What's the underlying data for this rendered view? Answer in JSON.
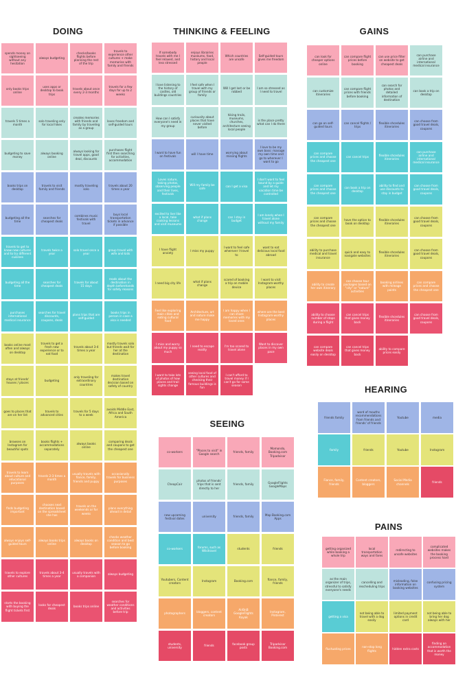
{
  "palette": {
    "pink": "#f9a8b8",
    "teal": "#bde3dd",
    "lav": "#b8c7ea",
    "blue": "#9fb5e6",
    "cyan": "#59ccd4",
    "lime": "#e4e47a",
    "orange": "#f6a86a",
    "red": "#ea5371",
    "crimson": "#e54a66",
    "empty": "#ffffff"
  },
  "sections": [
    {
      "id": "doing",
      "title": "DOING",
      "notes": [
        [
          "spends money on sightseeing without any hesitation",
          "pink"
        ],
        [
          "always budgeting",
          "pink"
        ],
        [
          "checks/books flights before planning the rest of the trip",
          "pink"
        ],
        [
          "travels to experience other cultures + make memories with family and friends",
          "pink"
        ],
        [
          "only books trips online",
          "pink"
        ],
        [
          "uses apps or desktop to book trips",
          "pink"
        ],
        [
          "travels about once every 2-3 months",
          "pink"
        ],
        [
          "travels for a few days for up to 2 weeks",
          "pink"
        ],
        [
          "travels 5 times a month",
          "teal"
        ],
        [
          "solo traveling only for local hikes",
          "teal"
        ],
        [
          "creates memories with friends and family by traveling as a group",
          "teal"
        ],
        [
          "loves freedom and self-guided tours",
          "teal"
        ],
        [
          "budgeting to save money",
          "teal"
        ],
        [
          "always booking online",
          "teal"
        ],
        [
          "always looking for travel apps, good deal, discounts",
          "teal"
        ],
        [
          "purchases flight first then searching for activities, accommodation",
          "teal"
        ],
        [
          "books trips on desktop",
          "blue"
        ],
        [
          "travels to visit family and friends",
          "blue"
        ],
        [
          "mostly traveling solo",
          "blue"
        ],
        [
          "travels about 20 times a year",
          "blue"
        ],
        [
          "budgeting all the time",
          "blue"
        ],
        [
          "searches for cheapest deals",
          "blue"
        ],
        [
          "combines music festivals with travel",
          "blue"
        ],
        [
          "buys local transportation tickets in advance if possible",
          "blue"
        ],
        [
          "travels to get to know new cultures and to try different cuisines",
          "cyan"
        ],
        [
          "travels twice a year",
          "cyan"
        ],
        [
          "solo travel once a year",
          "cyan"
        ],
        [
          "group travel with wife and kids",
          "cyan"
        ],
        [
          "budgeting all the time",
          "cyan"
        ],
        [
          "searches for cheapest deals",
          "cyan"
        ],
        [
          "travels for about 15 days",
          "cyan"
        ],
        [
          "reads about the destination in depth beforehands for safety reasons",
          "cyan"
        ],
        [
          "purchases international medical insurance",
          "cyan"
        ],
        [
          "searches for travel discounts, coupons, deals",
          "cyan"
        ],
        [
          "plans trips that are self-guided",
          "cyan"
        ],
        [
          "books trips in person in case a visa is needed",
          "cyan"
        ],
        [
          "books online most often and always on desktop",
          "lime"
        ],
        [
          "travels to get a fresh new experience or to eat food",
          "lime"
        ],
        [
          "travels about 3-4 times a year",
          "lime"
        ],
        [
          "mostly travels solo but friends wait for her at the destination",
          "lime"
        ],
        [
          "stays at friends' houses / places",
          "lime"
        ],
        [
          "budgeting",
          "lime"
        ],
        [
          "only traveling for extraordinary countries",
          "lime"
        ],
        [
          "makes travel destination decision based on safety of country",
          "lime"
        ],
        [
          "goes to places that are on her list",
          "lime"
        ],
        [
          "travels to advanced cities",
          "lime"
        ],
        [
          "travels for 5 days to a week",
          "lime"
        ],
        [
          "avoids Middle East, Africa and South America",
          "lime"
        ],
        [
          "browses on Instagram for beautiful spots",
          "lime"
        ],
        [
          "books flights + accommodations separately",
          "lime"
        ],
        [
          "always books online",
          "lime"
        ],
        [
          "comparing deals and coupons to get the cheapest one",
          "lime"
        ],
        [
          "travels to learn about culture and educational purposes",
          "orange"
        ],
        [
          "travels 2-3 times a month",
          "orange"
        ],
        [
          "usually travels with fiance, family, friends and puppy",
          "orange"
        ],
        [
          "occasionally travels for business purposes",
          "orange"
        ],
        [
          "finds budgeting important",
          "orange"
        ],
        [
          "chooses next destination based on the spreadsheet she has",
          "orange"
        ],
        [
          "travels on the weekends or for weeks",
          "orange"
        ],
        [
          "plans everything ahead in detail",
          "orange"
        ],
        [
          "always enjoys self-guided tours",
          "orange"
        ],
        [
          "always books trips online",
          "orange"
        ],
        [
          "always books on desktop",
          "orange"
        ],
        [
          "checks weather condition and best season to go before booking",
          "orange"
        ],
        [
          "travels to explore other cultures",
          "red"
        ],
        [
          "travels about 3-4 times a year",
          "red"
        ],
        [
          "usually travels with a companion",
          "red"
        ],
        [
          "always budgeting",
          "red"
        ],
        [
          "starts the booking with buying the flight tickets first",
          "red"
        ],
        [
          "looks for cheapest deals",
          "red"
        ],
        [
          "books trips online",
          "red"
        ],
        [
          "searches for weather conditions and activities before trip",
          "red"
        ]
      ]
    },
    {
      "id": "thinking",
      "title": "THINKING & FEELING",
      "notes": [
        [
          "If somebody travels with me I feel relaxed, and less stressed",
          "pink"
        ],
        [
          "enjoys librairies museums, food, history and local people",
          "pink"
        ],
        [
          "Which countries are unsafe",
          "pink"
        ],
        [
          "Self-guided tours gives me freedom",
          "pink"
        ],
        [
          "I love listening to the history of castles, old buildings countries",
          "teal"
        ],
        [
          "I feel safe when I travel with my group of friends or family",
          "teal"
        ],
        [
          "Will I get lost or be robbed",
          "teal"
        ],
        [
          "I am so stressed as I need to travel",
          "teal"
        ],
        [
          "How can I satisfy everyone's need in my group",
          "teal"
        ],
        [
          "curiousity about places that have never visited before",
          "teal"
        ],
        [
          "hiking trails, museums, churches, architecture seeing local people",
          "teal"
        ],
        [
          "is the place pretty what can I do there",
          "teal"
        ],
        [
          "I want to have fun on festivals",
          "blue"
        ],
        [
          "will I have time",
          "blue"
        ],
        [
          "worrying about missing flights",
          "blue"
        ],
        [
          "I love to be my own boss: manage my own time and go to wherever I want to go",
          "blue"
        ],
        [
          "Loves nature, taking photos, observing people and their lives, festivals",
          "cyan"
        ],
        [
          "Will my family be safe",
          "cyan"
        ],
        [
          "can I get a visa",
          "cyan"
        ],
        [
          "I don't want to feel bound by a guide and let my vacation time be controlled",
          "cyan"
        ],
        [
          "excited to live like a local, take cooking lessons and visit museums",
          "cyan"
        ],
        [
          "what if plans change",
          "cyan"
        ],
        [
          "can I stay in budget",
          "cyan"
        ],
        [
          "I am lonely when I travel alone without my family",
          "cyan"
        ],
        [
          "I have flight anxiety",
          "lime"
        ],
        [
          "I miss my puppy",
          "lime"
        ],
        [
          "I want to feel safe wherever I travel to",
          "lime"
        ],
        [
          "want to eat delicious local food abroad",
          "lime"
        ],
        [
          "I need big city life",
          "lime"
        ],
        [
          "what if plans change",
          "lime"
        ],
        [
          "scared of booking a trip on mobile device",
          "lime"
        ],
        [
          "I want to visit Instagram-worthy places",
          "lime"
        ],
        [
          "Feel like exploring main cities and eating cultural food",
          "orange"
        ],
        [
          "Architecture, art and nature make me happy",
          "orange"
        ],
        [
          "I am happy when I can share memories with my loved ones",
          "orange"
        ],
        [
          "where are the best Instagram-worthy places",
          "orange"
        ],
        [
          "I miss and worry about my puppy so much",
          "red"
        ],
        [
          "I need to escape reality",
          "red"
        ],
        [
          "I'm too scared to travel alone",
          "red"
        ],
        [
          "Want to discover places in my own pace",
          "red"
        ],
        [
          "I want to take lots of photos of how places and trail sights change",
          "crimson"
        ],
        [
          "seeing local food of other cultures and checking their famous buildings is fun",
          "crimson"
        ],
        [
          "I can't afford to travel money if I can't go for some season",
          "crimson"
        ],
        [
          "",
          "empty"
        ]
      ]
    },
    {
      "id": "gains",
      "title": "GAINS",
      "notes": [
        [
          "can look for cheaper options online",
          "pink"
        ],
        [
          "can compare flight prices before booking",
          "pink"
        ],
        [
          "can use price filter on website to get cheapest deals",
          "pink"
        ],
        [
          "can purchase airline and international medical insurance",
          "teal"
        ],
        [
          "can customize itineraries",
          "teal"
        ],
        [
          "can compare flight prices with friends before booking",
          "teal"
        ],
        [
          "can search for photos and detailed information of destination",
          "teal"
        ],
        [
          "can book a trip on desktop",
          "teal"
        ],
        [
          "can go on self-guided tours",
          "blue"
        ],
        [
          "can cancel flights / trips",
          "blue"
        ],
        [
          "flexible shcedules itineraries",
          "blue"
        ],
        [
          "can choose from good travel deals, coupons",
          "blue"
        ],
        [
          "can compare prices and choose the cheapest one",
          "cyan"
        ],
        [
          "can cancel trips",
          "cyan"
        ],
        [
          "flexible shcedules itineraries",
          "cyan"
        ],
        [
          "can purchase airline and international medical insurance",
          "cyan"
        ],
        [
          "can compare prices and choose the cheapest one",
          "cyan"
        ],
        [
          "can book a trip on desktop",
          "cyan"
        ],
        [
          "ability to find and use discounts to stay in budget",
          "cyan"
        ],
        [
          "can choose from good travel deals, coupons",
          "cyan"
        ],
        [
          "can compare prices and choose the cheapest one",
          "lime"
        ],
        [
          "have the option to book on desktop",
          "lime"
        ],
        [
          "flexible shcedules itineraries",
          "lime"
        ],
        [
          "can choose from good travel deals, coupons",
          "lime"
        ],
        [
          "ability to purchase medical and travel insurance",
          "lime"
        ],
        [
          "quick and easy to navigate websites",
          "lime"
        ],
        [
          "flexible shcedules itineraries",
          "lime"
        ],
        [
          "can choose from good travel deals, coupons",
          "lime"
        ],
        [
          "ability to create her own itinerary",
          "orange"
        ],
        [
          "can choose tour packages based on \"city\" or \"nature\" activities",
          "orange"
        ],
        [
          "booking airlines with mileage points",
          "orange"
        ],
        [
          "can compare prices and choose the cheapest one",
          "orange"
        ],
        [
          "ability to choose number of stops during a flight",
          "red"
        ],
        [
          "can cancel trips that gives money back",
          "red"
        ],
        [
          "flexible shcedules itineraries",
          "red"
        ],
        [
          "can choose from good travel deals, coupons",
          "red"
        ],
        [
          "can compare website deals easily on desktop",
          "crimson"
        ],
        [
          "can cancel trips that gives money back",
          "crimson"
        ],
        [
          "ability to compare prices easily",
          "crimson"
        ],
        [
          "",
          "empty"
        ]
      ]
    },
    {
      "id": "seeing",
      "title": "SEEING",
      "notes": [
        [
          "co-workers",
          "pink"
        ],
        [
          "\"Places to visit\" in Google search",
          "pink"
        ],
        [
          "friends, family",
          "pink"
        ],
        [
          "Momondo, Booking.com Tripadvisor",
          "pink"
        ],
        [
          "CheapCair",
          "teal"
        ],
        [
          "photos of friends' trips that is sent directly to her",
          "teal"
        ],
        [
          "friends, family",
          "teal"
        ],
        [
          "GoogleFlights GoogleMaps",
          "teal"
        ],
        [
          "new upcoming festival dates",
          "blue"
        ],
        [
          "university",
          "blue"
        ],
        [
          "friends, family",
          "blue"
        ],
        [
          "Map Booking.com Apps",
          "blue"
        ],
        [
          "co-workers",
          "cyan"
        ],
        [
          "forums, such as Wikitravel",
          "cyan"
        ],
        [
          "students",
          "lime"
        ],
        [
          "friends",
          "lime"
        ],
        [
          "Youtubers, Content creators",
          "lime"
        ],
        [
          "Instagram",
          "lime"
        ],
        [
          "Booking.com",
          "lime"
        ],
        [
          "fiance, family, friends",
          "lime"
        ],
        [
          "photographers",
          "orange"
        ],
        [
          "bloggers, content creators",
          "orange"
        ],
        [
          "AirBnB GoogleFlights Kayak",
          "orange"
        ],
        [
          "Instagram, Pinterest",
          "orange"
        ],
        [
          "students, university",
          "crimson"
        ],
        [
          "friends",
          "crimson"
        ],
        [
          "facebook group posts",
          "crimson"
        ],
        [
          "Tripadvisor Booking.com",
          "crimson"
        ]
      ]
    },
    {
      "id": "hearing",
      "title": "HEARING",
      "notes": [
        [
          "friends family",
          "blue"
        ],
        [
          "word of mouths recommendations from friends and friends' of friends",
          "blue"
        ],
        [
          "Youtube",
          "blue"
        ],
        [
          "media",
          "blue"
        ],
        [
          "family",
          "cyan"
        ],
        [
          "friends",
          "lime"
        ],
        [
          "Youtube",
          "lime"
        ],
        [
          "Instagram",
          "lime"
        ],
        [
          "Fiance, family, friends",
          "orange"
        ],
        [
          "Content creators, bloggers",
          "orange"
        ],
        [
          "Social Media channels",
          "orange"
        ],
        [
          "friends",
          "crimson"
        ]
      ]
    },
    {
      "id": "pains",
      "title": "PAINS",
      "notes": [
        [
          "getting organized while booking a whole trip",
          "pink"
        ],
        [
          "local transportation ways and fares",
          "pink"
        ],
        [
          "redirecting to unsafe websites",
          "pink"
        ],
        [
          "complicated websites makes the booking process hard",
          "pink"
        ],
        [
          "as the main organizer of trips, stressful to satisfy everyone's needs",
          "teal"
        ],
        [
          "cancelling and rescheduling trips",
          "teal"
        ],
        [
          "misleading, false information on booking websites",
          "blue"
        ],
        [
          "confusing pricing system",
          "blue"
        ],
        [
          "getting a visa",
          "cyan"
        ],
        [
          "not being able to travel with a dog easily",
          "lime"
        ],
        [
          "limited payment options in credit card",
          "lime"
        ],
        [
          "not being able to bring her dog always with her",
          "lime"
        ],
        [
          "fluctuating prices",
          "orange"
        ],
        [
          "non-stop long flights",
          "orange"
        ],
        [
          "hidden extra costs",
          "crimson"
        ],
        [
          "finding an accommodation that is worth the money",
          "crimson"
        ]
      ]
    }
  ]
}
